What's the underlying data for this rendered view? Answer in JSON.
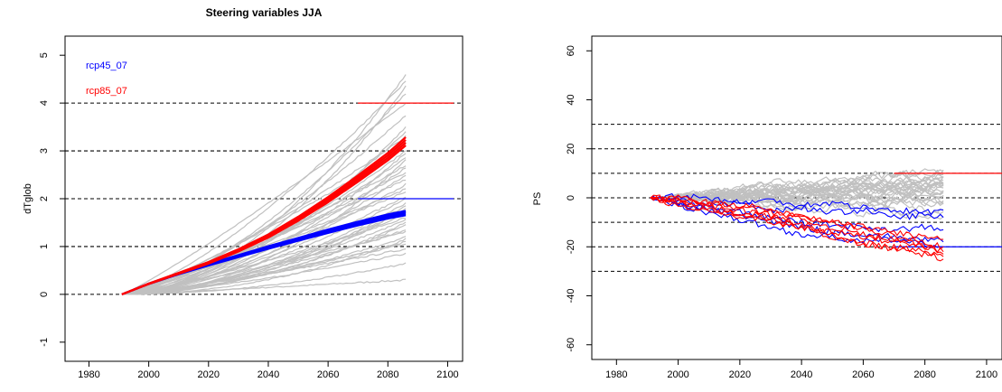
{
  "chart_data": [
    {
      "type": "line",
      "title": "Steering variables JJA",
      "xlabel": "",
      "ylabel": "dTglob",
      "xlim": [
        1972,
        2105
      ],
      "ylim": [
        -1.4,
        5.4
      ],
      "xticks": [
        1980,
        2000,
        2020,
        2040,
        2060,
        2080,
        2100
      ],
      "yticks": [
        -1,
        0,
        1,
        2,
        3,
        4,
        5
      ],
      "xtick_labels": [
        "1980",
        "2000",
        "2020",
        "2040",
        "2060",
        "2080",
        "2100"
      ],
      "ytick_labels": [
        "-1",
        "0",
        "1",
        "2",
        "3",
        "4",
        "5"
      ],
      "hlines": [
        0,
        1,
        2,
        3,
        4
      ],
      "hline_style": "dashed",
      "grid": false,
      "legend_position": "top-left",
      "ensemble_color": "#c0c0c0",
      "colors": {
        "rcp45_07": "#0000ff",
        "rcp85_07": "#ff0000"
      },
      "ensemble_endpoints_2086": [
        0.3,
        0.65,
        0.85,
        0.95,
        1.05,
        1.1,
        1.15,
        1.2,
        1.3,
        1.35,
        1.45,
        1.5,
        1.55,
        1.6,
        1.7,
        1.75,
        1.8,
        1.85,
        1.9,
        2.0,
        2.05,
        2.15,
        2.2,
        2.3,
        2.4,
        2.5,
        2.55,
        2.65,
        2.7,
        2.8,
        2.85,
        2.95,
        3.0,
        3.1,
        3.2,
        3.3,
        3.4,
        3.5,
        3.75,
        4.0,
        4.2,
        4.35,
        4.45,
        4.6
      ],
      "series": [
        {
          "name": "rcp45_07",
          "x": [
            1991,
            2000,
            2010,
            2020,
            2030,
            2040,
            2050,
            2060,
            2070,
            2080,
            2086
          ],
          "values": [
            0,
            0.22,
            0.43,
            0.62,
            0.8,
            0.98,
            1.15,
            1.32,
            1.48,
            1.63,
            1.7
          ]
        },
        {
          "name": "rcp85_07",
          "x": [
            1991,
            2000,
            2010,
            2020,
            2030,
            2040,
            2050,
            2060,
            2070,
            2080,
            2086
          ],
          "values": [
            0,
            0.22,
            0.44,
            0.66,
            0.92,
            1.22,
            1.58,
            1.98,
            2.42,
            2.88,
            3.2
          ]
        }
      ],
      "marker_segments": [
        {
          "series": "rcp85_07",
          "y": 4,
          "x_from": 2070,
          "x_to": 2102
        },
        {
          "series": "rcp45_07",
          "y": 2,
          "x_from": 2070,
          "x_to": 2102
        }
      ]
    },
    {
      "type": "line",
      "title": "",
      "xlabel": "",
      "ylabel": "PS",
      "xlim": [
        1972,
        2105
      ],
      "ylim": [
        -66,
        66
      ],
      "xticks": [
        1980,
        2000,
        2020,
        2040,
        2060,
        2080,
        2100
      ],
      "yticks": [
        -60,
        -40,
        -20,
        0,
        20,
        40,
        60
      ],
      "xtick_labels": [
        "1980",
        "2000",
        "2020",
        "2040",
        "2060",
        "2080",
        "2100"
      ],
      "ytick_labels": [
        "-60",
        "-40",
        "-20",
        "0",
        "20",
        "40",
        "60"
      ],
      "hlines": [
        -30,
        -20,
        -10,
        0,
        10,
        20,
        30
      ],
      "hline_style": "dashed",
      "grid": false,
      "ensemble_color": "#c0c0c0",
      "colors": {
        "rcp45_07": "#0000ff",
        "rcp85_07": "#ff0000"
      },
      "ensemble_endpoints_2086": [
        -8,
        -5,
        -3,
        -2,
        0,
        1,
        2,
        3,
        4,
        5,
        6,
        7,
        8,
        9,
        10,
        11,
        12,
        3,
        6,
        -1,
        4,
        8,
        10,
        -6,
        0,
        5,
        7,
        2
      ],
      "series": [
        {
          "name": "rcp45_07",
          "members": [
            {
              "x": [
                1991,
                2000,
                2010,
                2020,
                2030,
                2040,
                2050,
                2060,
                2070,
                2080,
                2086
              ],
              "values": [
                0,
                -1,
                -3,
                -2,
                -5,
                -4,
                -6,
                -5,
                -8,
                -7,
                -8
              ]
            },
            {
              "x": [
                1991,
                2000,
                2010,
                2020,
                2030,
                2040,
                2050,
                2060,
                2070,
                2080,
                2086
              ],
              "values": [
                0,
                1,
                0,
                -2,
                -1,
                -3,
                -2,
                -4,
                -5,
                -6,
                -5
              ]
            },
            {
              "x": [
                1991,
                2000,
                2010,
                2020,
                2030,
                2040,
                2050,
                2060,
                2070,
                2080,
                2086
              ],
              "values": [
                0,
                -2,
                -5,
                -6,
                -8,
                -10,
                -11,
                -12,
                -13,
                -12,
                -13
              ]
            },
            {
              "x": [
                1991,
                2000,
                2010,
                2020,
                2030,
                2040,
                2050,
                2060,
                2070,
                2080,
                2086
              ],
              "values": [
                0,
                -2,
                -4,
                -7,
                -10,
                -12,
                -14,
                -15,
                -16,
                -17,
                -18
              ]
            },
            {
              "x": [
                1991,
                2000,
                2010,
                2020,
                2030,
                2040,
                2050,
                2060,
                2070,
                2080,
                2086
              ],
              "values": [
                0,
                -3,
                -6,
                -9,
                -12,
                -15,
                -16,
                -18,
                -17,
                -19,
                -20
              ]
            }
          ]
        },
        {
          "name": "rcp85_07",
          "members": [
            {
              "x": [
                1991,
                2000,
                2010,
                2020,
                2030,
                2040,
                2050,
                2060,
                2070,
                2080,
                2086
              ],
              "values": [
                0,
                -1,
                -2,
                -4,
                -6,
                -8,
                -10,
                -12,
                -14,
                -16,
                -17
              ]
            },
            {
              "x": [
                1991,
                2000,
                2010,
                2020,
                2030,
                2040,
                2050,
                2060,
                2070,
                2080,
                2086
              ],
              "values": [
                0,
                -2,
                -4,
                -6,
                -8,
                -11,
                -14,
                -16,
                -18,
                -20,
                -22
              ]
            },
            {
              "x": [
                1991,
                2000,
                2010,
                2020,
                2030,
                2040,
                2050,
                2060,
                2070,
                2080,
                2086
              ],
              "values": [
                0,
                -1,
                -3,
                -5,
                -7,
                -9,
                -12,
                -15,
                -17,
                -20,
                -23
              ]
            },
            {
              "x": [
                1991,
                2000,
                2010,
                2020,
                2030,
                2040,
                2050,
                2060,
                2070,
                2080,
                2086
              ],
              "values": [
                0,
                -3,
                -5,
                -7,
                -10,
                -12,
                -15,
                -18,
                -21,
                -23,
                -25
              ]
            },
            {
              "x": [
                1991,
                2000,
                2010,
                2020,
                2030,
                2040,
                2050,
                2060,
                2070,
                2080,
                2086
              ],
              "values": [
                0,
                0,
                -2,
                -3,
                -5,
                -8,
                -10,
                -13,
                -15,
                -18,
                -20
              ]
            },
            {
              "x": [
                1991,
                2000,
                2010,
                2020,
                2030,
                2040,
                2050,
                2060,
                2070,
                2080,
                2086
              ],
              "values": [
                0,
                -2,
                -5,
                -8,
                -9,
                -12,
                -16,
                -19,
                -20,
                -22,
                -24
              ]
            }
          ]
        }
      ],
      "marker_segments": [
        {
          "series": "rcp85_07",
          "y": 10,
          "x_from": 2070,
          "x_to": 2105
        },
        {
          "series": "rcp45_07",
          "y": -20,
          "x_from": 2070,
          "x_to": 2105
        }
      ]
    }
  ]
}
